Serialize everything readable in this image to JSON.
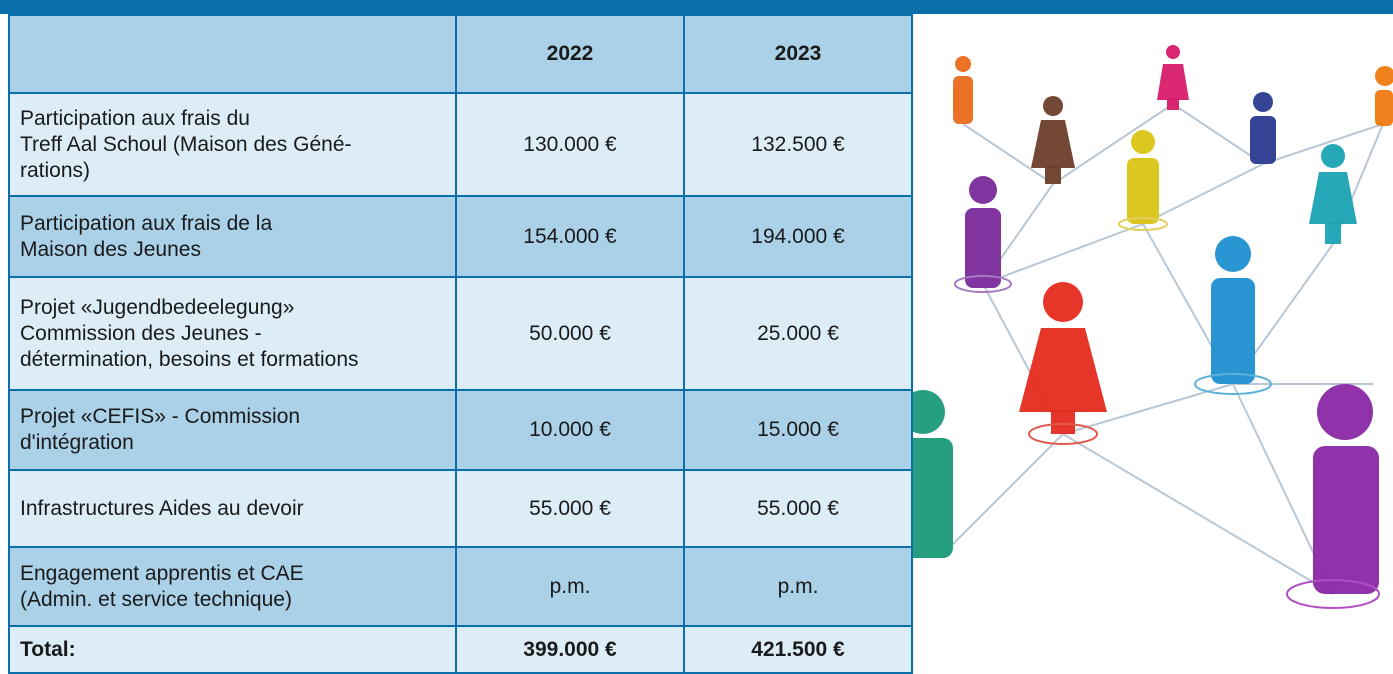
{
  "table": {
    "columns": [
      "2022",
      "2023"
    ],
    "rows": [
      {
        "label": [
          "Participation aux frais du",
          "Treff Aal Schoul (Maison des Géné-",
          "rations)"
        ],
        "values": [
          "130.000 €",
          "132.500 €"
        ]
      },
      {
        "label": [
          "Participation aux frais de la",
          "Maison des Jeunes"
        ],
        "values": [
          "154.000 €",
          "194.000 €"
        ]
      },
      {
        "label": [
          "Projet «Jugendbedeelegung»",
          "Commission des Jeunes -",
          "détermination, besoins et formations"
        ],
        "values": [
          "50.000 €",
          "25.000 €"
        ]
      },
      {
        "label": [
          "Projet «CEFIS» - Commission",
          "d'intégration"
        ],
        "values": [
          "10.000 €",
          "15.000 €"
        ]
      },
      {
        "label": [
          "Infrastructures Aides au devoir"
        ],
        "values": [
          "55.000 €",
          "55.000 €"
        ]
      },
      {
        "label": [
          "Engagement apprentis et CAE",
          "(Admin. et service technique)"
        ],
        "values": [
          "p.m.",
          "p.m."
        ]
      }
    ],
    "total": {
      "label": "Total:",
      "values": [
        "399.000 €",
        "421.500 €"
      ]
    }
  }
}
